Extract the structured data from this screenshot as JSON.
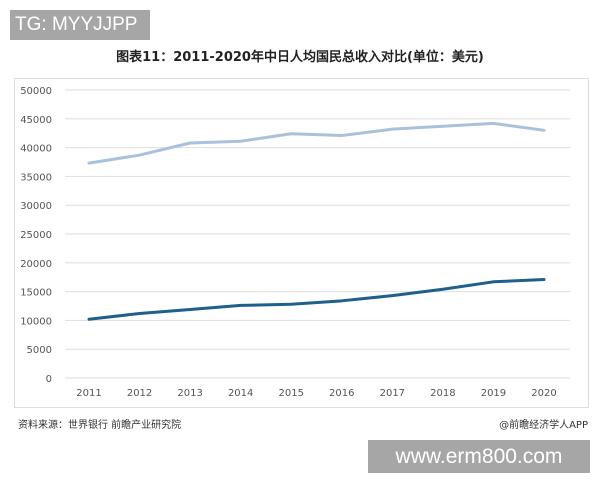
{
  "watermark_top": "TG: MYYJJPP",
  "watermark_bottom": "www.erm800.com",
  "source": "资料来源：世界银行 前瞻产业研究院",
  "credit": "@前瞻经济学人APP",
  "chart_data": {
    "type": "line",
    "title": "图表11：2011-2020年中日人均国民总收入对比(单位：美元)",
    "categories": [
      "2011",
      "2012",
      "2013",
      "2014",
      "2015",
      "2016",
      "2017",
      "2018",
      "2019",
      "2020"
    ],
    "ylim": [
      0,
      50000
    ],
    "yticks": [
      0,
      5000,
      10000,
      15000,
      20000,
      25000,
      30000,
      35000,
      40000,
      45000,
      50000
    ],
    "grid": true,
    "legend": "none",
    "series": [
      {
        "values": [
          37300,
          38700,
          40800,
          41100,
          42400,
          42100,
          43200,
          43700,
          44200,
          43000
        ],
        "color": "#a9c1da"
      },
      {
        "values": [
          10200,
          11200,
          11900,
          12600,
          12800,
          13400,
          14300,
          15400,
          16700,
          17100
        ],
        "color": "#1f5f8b"
      }
    ]
  }
}
